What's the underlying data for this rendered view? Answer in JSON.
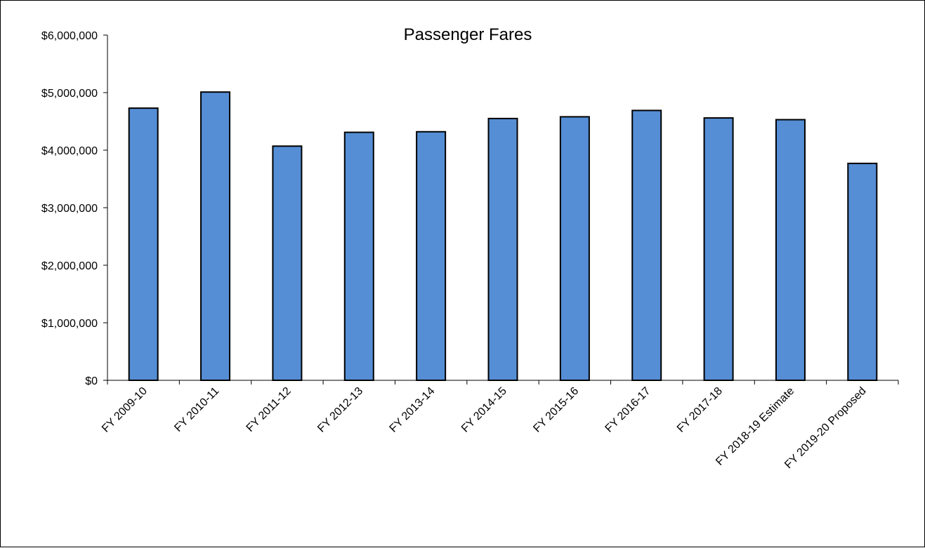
{
  "chart_data": {
    "type": "bar",
    "title": "Passenger Fares",
    "xlabel": "",
    "ylabel": "",
    "categories": [
      "FY 2009-10",
      "FY 2010-11",
      "FY 2011-12",
      "FY 2012-13",
      "FY 2013-14",
      "FY 2014-15",
      "FY 2015-16",
      "FY 2016-17",
      "FY 2017-18",
      "FY 2018-19 Estimate",
      "FY 2019-20 Proposed"
    ],
    "values": [
      4730000,
      5010000,
      4070000,
      4310000,
      4320000,
      4550000,
      4580000,
      4690000,
      4560000,
      4530000,
      3770000
    ],
    "ylim": [
      0,
      6000000
    ],
    "yticks": [
      0,
      1000000,
      2000000,
      3000000,
      4000000,
      5000000,
      6000000
    ],
    "ytick_labels": [
      "$0",
      "$1,000,000",
      "$2,000,000",
      "$3,000,000",
      "$4,000,000",
      "$5,000,000",
      "$6,000,000"
    ],
    "grid": false,
    "legend": "none",
    "bar_color": "#558ED5",
    "bar_edge_color": "#000000"
  }
}
